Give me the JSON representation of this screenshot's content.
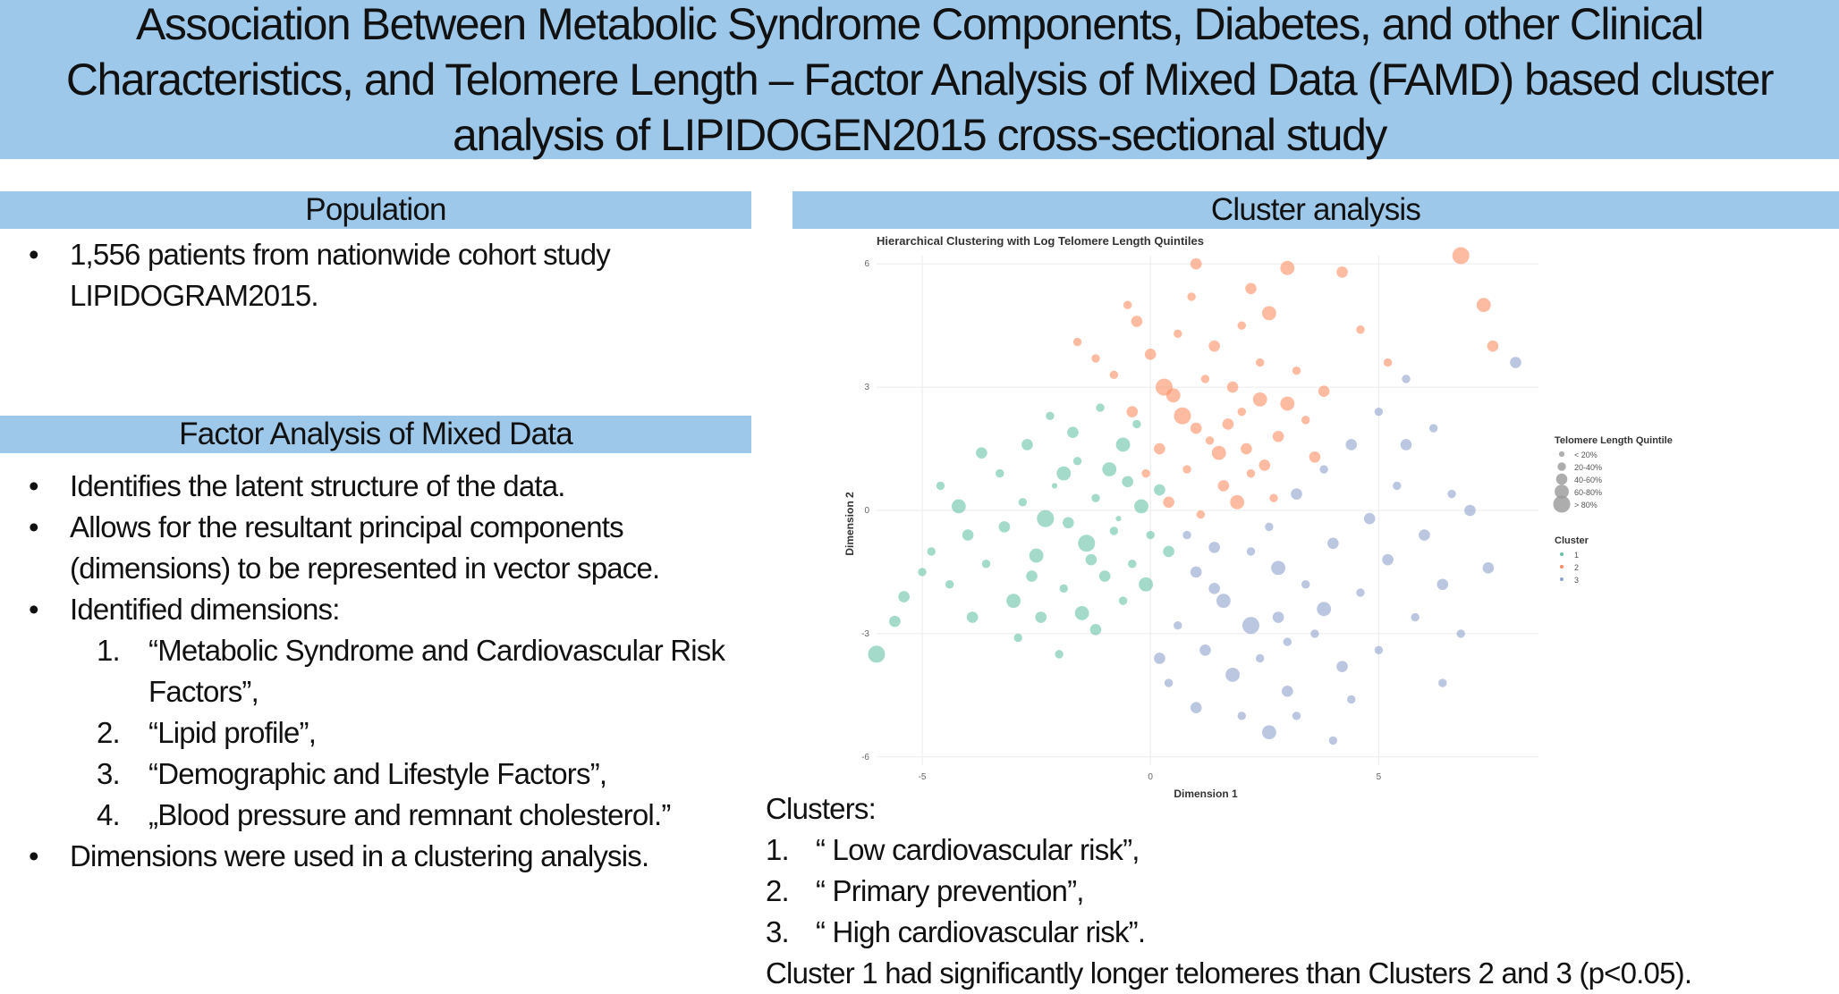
{
  "title": "Association Between Metabolic Syndrome Components, Diabetes, and other Clinical Characteristics, and Telomere Length – Factor Analysis of Mixed Data (FAMD) based cluster analysis of LIPIDOGEN2015 cross-sectional study",
  "population": {
    "heading": "Population",
    "bullets": [
      "1,556 patients from nationwide cohort study LIPIDOGRAM2015."
    ]
  },
  "famd": {
    "heading": "Factor Analysis of Mixed Data",
    "bullets": [
      "Identifies the latent structure of the data.",
      "Allows for the resultant principal components (dimensions) to be represented in vector space.",
      "Identified dimensions:"
    ],
    "dimensions": [
      {
        "num": "1.",
        "text": "“Metabolic Syndrome and Cardiovascular Risk Factors”,"
      },
      {
        "num": "2.",
        "text": "“Lipid profile”,"
      },
      {
        "num": "3.",
        "text": "“Demographic and Lifestyle Factors”,"
      },
      {
        "num": "4.",
        "text": "„Blood pressure and remnant cholesterol.”"
      }
    ],
    "last_bullet": "Dimensions were used in a clustering analysis."
  },
  "cluster_analysis": {
    "heading": "Cluster analysis"
  },
  "clusters": {
    "heading": "Clusters:",
    "items": [
      {
        "num": "1.",
        "text": "“ Low cardiovascular risk”,"
      },
      {
        "num": "2.",
        "text": "“ Primary prevention”,"
      },
      {
        "num": "3.",
        "text": "“ High cardiovascular risk”."
      }
    ],
    "conclusion": "Cluster 1 had significantly longer telomeres than Clusters 2 and 3 (p<0.05)."
  },
  "chart_data": {
    "type": "scatter",
    "title": "Hierarchical Clustering with Log Telomere Length Quintiles",
    "xlabel": "Dimension 1",
    "ylabel": "Dimension 2",
    "xlim": [
      -6,
      8.5
    ],
    "ylim": [
      -6.2,
      6.2
    ],
    "xticks": [
      -5,
      0,
      5
    ],
    "yticks": [
      6,
      3,
      0,
      -3,
      -6
    ],
    "grid": true,
    "legend_position": "right",
    "size_legend": {
      "title": "Telomere Length Quintile",
      "labels": [
        "< 20%",
        "20-40%",
        "40-60%",
        "60-80%",
        "> 80%"
      ]
    },
    "color_legend": {
      "title": "Cluster",
      "labels": [
        "1",
        "2",
        "3"
      ]
    },
    "colors": {
      "1": "#66c2a5",
      "2": "#fc8d62",
      "3": "#8da0cb"
    },
    "series": [
      {
        "name": "1",
        "points": [
          [
            -3.2,
            -0.4,
            3
          ],
          [
            -2.8,
            0.2,
            2
          ],
          [
            -2.5,
            -1.1,
            4
          ],
          [
            -2.1,
            0.6,
            1
          ],
          [
            -1.8,
            -0.3,
            3
          ],
          [
            -1.6,
            1.2,
            2
          ],
          [
            -1.4,
            -0.8,
            5
          ],
          [
            -1.2,
            0.3,
            2
          ],
          [
            -1.0,
            -1.6,
            3
          ],
          [
            -0.9,
            1.0,
            4
          ],
          [
            -0.7,
            -0.2,
            1
          ],
          [
            -0.5,
            0.7,
            3
          ],
          [
            -0.4,
            -1.3,
            2
          ],
          [
            -0.2,
            0.1,
            4
          ],
          [
            0.0,
            -0.6,
            2
          ],
          [
            0.2,
            0.5,
            3
          ],
          [
            -3.6,
            -1.3,
            2
          ],
          [
            -4.0,
            -0.6,
            3
          ],
          [
            -4.4,
            -1.8,
            2
          ],
          [
            -3.0,
            -2.2,
            4
          ],
          [
            -2.4,
            -2.6,
            3
          ],
          [
            -1.9,
            -1.9,
            2
          ],
          [
            -1.5,
            -2.5,
            4
          ],
          [
            -3.3,
            0.9,
            2
          ],
          [
            -2.7,
            1.6,
            3
          ],
          [
            -2.2,
            2.3,
            2
          ],
          [
            -1.7,
            1.9,
            3
          ],
          [
            -1.1,
            2.5,
            2
          ],
          [
            -0.6,
            1.6,
            4
          ],
          [
            -0.3,
            2.1,
            2
          ],
          [
            -4.2,
            0.1,
            4
          ],
          [
            -4.8,
            -1.0,
            2
          ],
          [
            -5.4,
            -2.1,
            3
          ],
          [
            -5.0,
            -1.5,
            2
          ],
          [
            -3.9,
            -2.6,
            3
          ],
          [
            -2.9,
            -3.1,
            2
          ],
          [
            -2.0,
            -3.5,
            2
          ],
          [
            -1.2,
            -2.9,
            3
          ],
          [
            -0.6,
            -2.2,
            2
          ],
          [
            -0.1,
            -1.8,
            4
          ],
          [
            0.4,
            -1.0,
            3
          ],
          [
            -6.0,
            -3.5,
            5
          ],
          [
            -5.6,
            -2.7,
            3
          ],
          [
            -4.6,
            0.6,
            2
          ],
          [
            -3.7,
            1.4,
            3
          ],
          [
            -2.6,
            -1.6,
            3
          ],
          [
            -2.3,
            -0.2,
            5
          ],
          [
            -1.3,
            -1.2,
            3
          ],
          [
            -0.8,
            -0.5,
            2
          ],
          [
            -1.9,
            0.9,
            4
          ]
        ]
      },
      {
        "name": "2",
        "points": [
          [
            1.0,
            2.0,
            3
          ],
          [
            1.5,
            1.4,
            4
          ],
          [
            2.0,
            2.4,
            2
          ],
          [
            2.5,
            1.1,
            3
          ],
          [
            0.5,
            2.8,
            4
          ],
          [
            1.2,
            3.2,
            2
          ],
          [
            1.8,
            3.0,
            3
          ],
          [
            2.4,
            3.6,
            2
          ],
          [
            3.0,
            2.6,
            4
          ],
          [
            0.2,
            1.5,
            3
          ],
          [
            0.8,
            1.0,
            2
          ],
          [
            1.6,
            0.6,
            3
          ],
          [
            2.2,
            0.9,
            2
          ],
          [
            2.8,
            1.8,
            3
          ],
          [
            3.4,
            2.2,
            2
          ],
          [
            -0.4,
            2.4,
            3
          ],
          [
            -0.8,
            3.3,
            2
          ],
          [
            0.0,
            3.8,
            3
          ],
          [
            0.6,
            4.3,
            2
          ],
          [
            1.4,
            4.0,
            3
          ],
          [
            2.0,
            4.5,
            2
          ],
          [
            2.6,
            4.8,
            4
          ],
          [
            3.2,
            3.4,
            2
          ],
          [
            3.8,
            2.9,
            3
          ],
          [
            -1.2,
            3.7,
            2
          ],
          [
            -0.3,
            4.6,
            3
          ],
          [
            0.9,
            5.2,
            2
          ],
          [
            2.2,
            5.4,
            3
          ],
          [
            3.0,
            5.9,
            4
          ],
          [
            4.2,
            5.8,
            3
          ],
          [
            6.8,
            6.2,
            5
          ],
          [
            7.3,
            5.0,
            4
          ],
          [
            7.5,
            4.0,
            3
          ],
          [
            0.4,
            0.2,
            3
          ],
          [
            1.1,
            -0.1,
            2
          ],
          [
            1.9,
            0.2,
            4
          ],
          [
            -0.1,
            0.9,
            2
          ],
          [
            0.7,
            2.3,
            5
          ],
          [
            1.3,
            1.7,
            2
          ],
          [
            2.1,
            1.5,
            3
          ],
          [
            2.7,
            0.3,
            2
          ],
          [
            3.6,
            1.3,
            3
          ],
          [
            -1.6,
            4.1,
            2
          ],
          [
            -0.5,
            5.0,
            2
          ],
          [
            1.0,
            6.0,
            3
          ],
          [
            4.6,
            4.4,
            2
          ],
          [
            5.2,
            3.6,
            2
          ],
          [
            0.3,
            3.0,
            5
          ],
          [
            1.7,
            2.1,
            3
          ],
          [
            2.4,
            2.7,
            4
          ]
        ]
      },
      {
        "name": "3",
        "points": [
          [
            1.0,
            -1.5,
            3
          ],
          [
            1.6,
            -2.2,
            4
          ],
          [
            2.2,
            -1.0,
            2
          ],
          [
            2.8,
            -2.6,
            3
          ],
          [
            3.4,
            -1.8,
            2
          ],
          [
            4.0,
            -0.8,
            3
          ],
          [
            4.6,
            -2.0,
            2
          ],
          [
            5.2,
            -1.2,
            3
          ],
          [
            0.6,
            -2.8,
            2
          ],
          [
            1.2,
            -3.4,
            3
          ],
          [
            1.8,
            -4.0,
            4
          ],
          [
            2.4,
            -3.6,
            2
          ],
          [
            3.0,
            -4.4,
            3
          ],
          [
            3.6,
            -3.0,
            2
          ],
          [
            4.2,
            -3.8,
            3
          ],
          [
            0.4,
            -4.2,
            2
          ],
          [
            1.0,
            -4.8,
            3
          ],
          [
            2.0,
            -5.0,
            2
          ],
          [
            2.6,
            -5.4,
            4
          ],
          [
            3.2,
            -5.0,
            2
          ],
          [
            4.8,
            -0.2,
            3
          ],
          [
            5.4,
            0.6,
            2
          ],
          [
            6.0,
            -0.6,
            3
          ],
          [
            6.6,
            0.4,
            2
          ],
          [
            5.6,
            1.6,
            3
          ],
          [
            6.2,
            2.0,
            2
          ],
          [
            7.0,
            0.0,
            3
          ],
          [
            5.8,
            -2.6,
            2
          ],
          [
            6.4,
            -1.8,
            3
          ],
          [
            6.8,
            -3.0,
            2
          ],
          [
            3.2,
            0.4,
            3
          ],
          [
            3.8,
            1.0,
            2
          ],
          [
            4.4,
            1.6,
            3
          ],
          [
            5.0,
            2.4,
            2
          ],
          [
            5.6,
            3.2,
            2
          ],
          [
            8.0,
            3.6,
            3
          ],
          [
            0.8,
            -0.6,
            2
          ],
          [
            1.4,
            -0.9,
            3
          ],
          [
            2.6,
            -0.4,
            2
          ],
          [
            3.8,
            -2.4,
            4
          ],
          [
            4.4,
            -4.6,
            2
          ],
          [
            2.2,
            -2.8,
            5
          ],
          [
            1.4,
            -1.9,
            3
          ],
          [
            3.0,
            -3.2,
            2
          ],
          [
            0.2,
            -3.6,
            3
          ],
          [
            5.0,
            -3.4,
            2
          ],
          [
            7.4,
            -1.4,
            3
          ],
          [
            6.4,
            -4.2,
            2
          ],
          [
            4.0,
            -5.6,
            2
          ],
          [
            2.8,
            -1.4,
            4
          ]
        ]
      }
    ]
  }
}
